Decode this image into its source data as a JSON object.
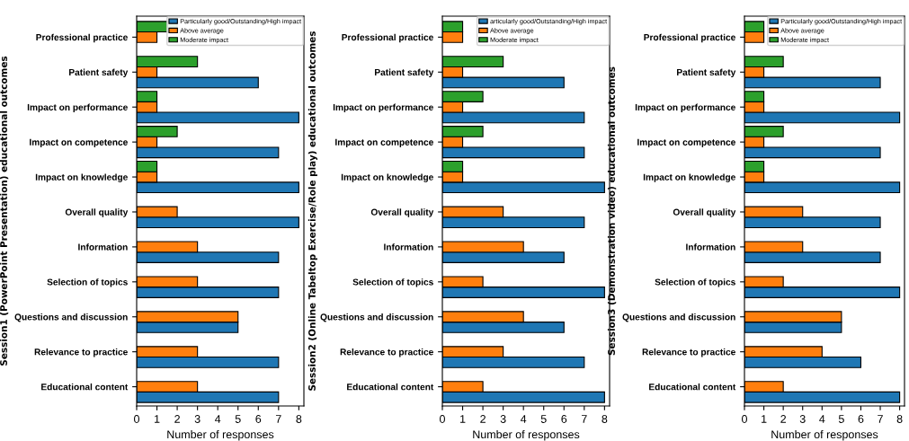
{
  "chart_data": [
    {
      "type": "bar",
      "orientation": "horizontal",
      "ylabel": "Session1 (PowerPoint Presentation) educational outcomes",
      "xlabel": "Number of responses",
      "categories": [
        "Professional practice",
        "Patient safety",
        "Impact on performance",
        "Impact on competence",
        "Impact on knowledge",
        "Overall quality",
        "Information",
        "Selection of topics",
        "Questions and discussion",
        "Relevance to practice",
        "Educational content"
      ],
      "series": [
        {
          "name": "Particularly good/Outstanding/High impact",
          "color": "#1f77b4",
          "values": [
            null,
            6,
            8,
            7,
            8,
            8,
            7,
            7,
            5,
            7,
            7
          ]
        },
        {
          "name": "Above average",
          "color": "#ff7f0e",
          "values": [
            1,
            1,
            1,
            1,
            1,
            2,
            3,
            3,
            5,
            3,
            3
          ]
        },
        {
          "name": "Moderate impact",
          "color": "#2ca02c",
          "values": [
            2,
            3,
            1,
            2,
            1,
            null,
            null,
            null,
            null,
            null,
            null
          ]
        }
      ],
      "xlim": [
        0,
        8.25
      ],
      "xticks": [
        0,
        1,
        2,
        3,
        4,
        5,
        6,
        7,
        8
      ],
      "legend": "top right",
      "grid": false
    },
    {
      "type": "bar",
      "orientation": "horizontal",
      "ylabel": "Session2 (Online Tabeltop Exercise/Role play) educational outcomes",
      "xlabel": "Number of responses",
      "categories": [
        "Professional practice",
        "Patient safety",
        "Impact on performance",
        "Impact on competence",
        "Impact on knowledge",
        "Overall quality",
        "Information",
        "Selection of topics",
        "Questions and discussion",
        "Relevance to practice",
        "Educational content"
      ],
      "series": [
        {
          "name": "articularly good/Outstanding/High impact",
          "color": "#1f77b4",
          "values": [
            null,
            6,
            7,
            7,
            8,
            7,
            6,
            8,
            6,
            7,
            8
          ]
        },
        {
          "name": "Above average",
          "color": "#ff7f0e",
          "values": [
            1,
            1,
            1,
            1,
            1,
            3,
            4,
            2,
            4,
            3,
            2
          ]
        },
        {
          "name": "Moderate impact",
          "color": "#2ca02c",
          "values": [
            1,
            3,
            2,
            2,
            1,
            null,
            null,
            null,
            null,
            null,
            null
          ]
        }
      ],
      "xlim": [
        0,
        8.25
      ],
      "xticks": [
        0,
        1,
        2,
        3,
        4,
        5,
        6,
        7,
        8
      ],
      "legend": "top right",
      "grid": false
    },
    {
      "type": "bar",
      "orientation": "horizontal",
      "ylabel": "Session3 (Demonstration video) educational outcomes",
      "xlabel": "Number of responses",
      "categories": [
        "Professional practice",
        "Patient safety",
        "Impact on performance",
        "Impact on competence",
        "Impact on knowledge",
        "Overall quality",
        "Information",
        "Selection of topics",
        "Questions and discussion",
        "Relevance to practice",
        "Educational content"
      ],
      "series": [
        {
          "name": "Particularly good/Outstanding/High impact",
          "color": "#1f77b4",
          "values": [
            null,
            7,
            8,
            7,
            8,
            7,
            7,
            8,
            5,
            6,
            8
          ]
        },
        {
          "name": "Above average",
          "color": "#ff7f0e",
          "values": [
            1,
            1,
            1,
            1,
            1,
            3,
            3,
            2,
            5,
            4,
            2
          ]
        },
        {
          "name": "Moderate impact",
          "color": "#2ca02c",
          "values": [
            1,
            2,
            1,
            2,
            1,
            null,
            null,
            null,
            null,
            null,
            null
          ]
        }
      ],
      "xlim": [
        0,
        8.25
      ],
      "xticks": [
        0,
        1,
        2,
        3,
        4,
        5,
        6,
        7,
        8
      ],
      "legend": "top right",
      "grid": false
    }
  ]
}
